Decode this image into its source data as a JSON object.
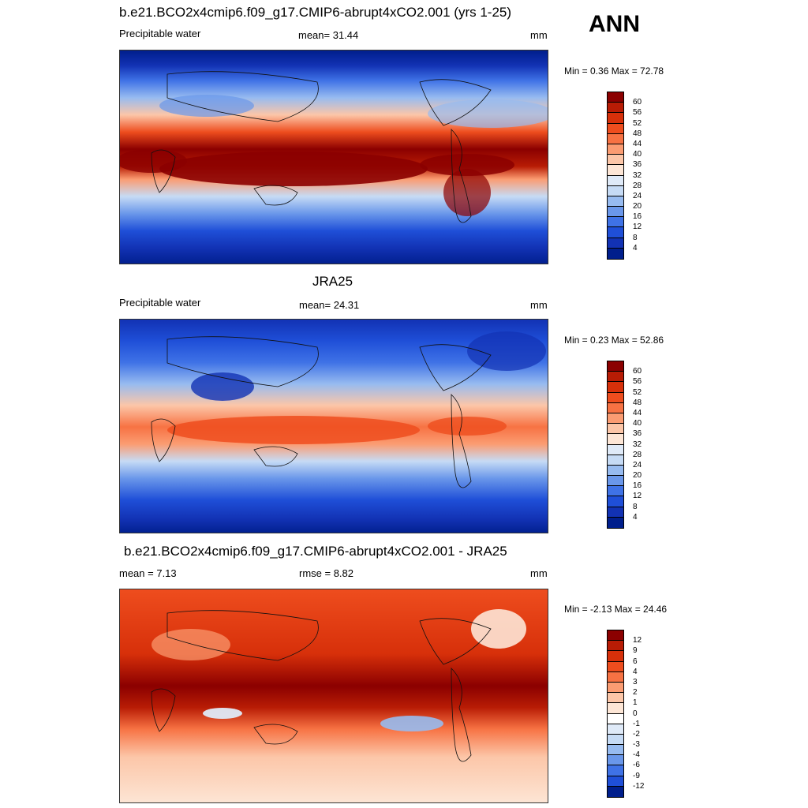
{
  "season": "ANN",
  "panels": [
    {
      "title": "b.e21.BCO2x4cmip6.f09_g17.CMIP6-abrupt4xCO2.001 (yrs 1-25)",
      "left": "Precipitable water",
      "center": "mean=  31.44",
      "units": "mm",
      "minmax": "Min =   0.36 Max =  72.78",
      "levels": [
        "60",
        "56",
        "52",
        "48",
        "44",
        "40",
        "36",
        "32",
        "28",
        "24",
        "20",
        "16",
        "12",
        "8",
        "4"
      ],
      "colors": [
        "#8b0000",
        "#b81c05",
        "#d7300a",
        "#ee4d1e",
        "#f77243",
        "#fb9c72",
        "#fcc6a8",
        "#fde6d6",
        "#dfeaf8",
        "#c6dbf5",
        "#97bbf0",
        "#6a97ea",
        "#3f72e6",
        "#1f4fd8",
        "#1232b4",
        "#001e8c"
      ]
    },
    {
      "title": "JRA25",
      "left": "Precipitable water",
      "center": "mean=  24.31",
      "units": "mm",
      "minmax": "Min =   0.23 Max =  52.86",
      "levels": [
        "60",
        "56",
        "52",
        "48",
        "44",
        "40",
        "36",
        "32",
        "28",
        "24",
        "20",
        "16",
        "12",
        "8",
        "4"
      ],
      "colors": [
        "#8b0000",
        "#b81c05",
        "#d7300a",
        "#ee4d1e",
        "#f77243",
        "#fb9c72",
        "#fcc6a8",
        "#fde6d6",
        "#dfeaf8",
        "#c6dbf5",
        "#97bbf0",
        "#6a97ea",
        "#3f72e6",
        "#1f4fd8",
        "#1232b4",
        "#001e8c"
      ]
    },
    {
      "title": "b.e21.BCO2x4cmip6.f09_g17.CMIP6-abrupt4xCO2.001 - JRA25",
      "left": "mean =   7.13",
      "center": "rmse =   8.82",
      "units": "mm",
      "minmax": "Min =  -2.13 Max =  24.46",
      "levels": [
        "12",
        "9",
        "6",
        "4",
        "3",
        "2",
        "1",
        "0",
        "-1",
        "-2",
        "-3",
        "-4",
        "-6",
        "-9",
        "-12"
      ],
      "colors": [
        "#8b0000",
        "#b81c05",
        "#d7300a",
        "#ee4d1e",
        "#f77243",
        "#fb9c72",
        "#fcc6a8",
        "#fde6d6",
        "#ffffff",
        "#dfeaf8",
        "#c6dbf5",
        "#97bbf0",
        "#6a97ea",
        "#3f72e6",
        "#1f4fd8",
        "#001e8c"
      ]
    }
  ]
}
